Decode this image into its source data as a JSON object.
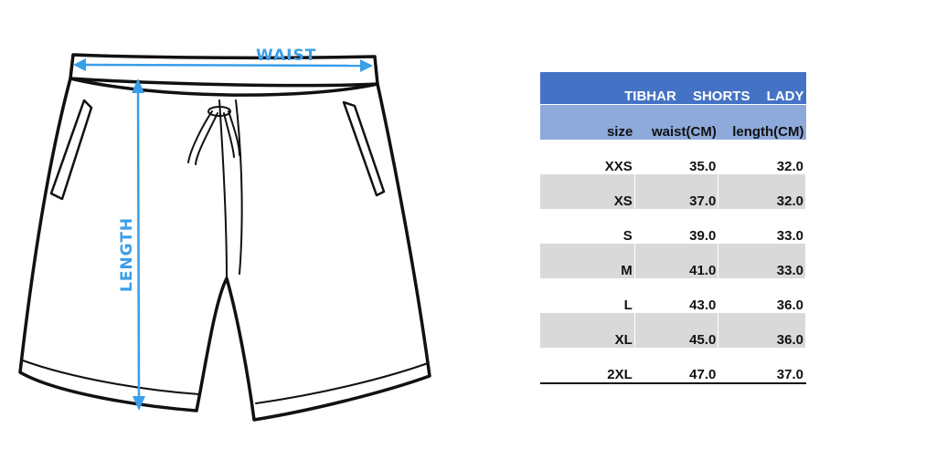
{
  "diagram": {
    "waist_label": "WAIST",
    "length_label": "LENGTH",
    "accent_color": "#3a9ee8"
  },
  "table": {
    "title": [
      "TIBHAR",
      "SHORTS",
      "LADY"
    ],
    "headers": [
      "size",
      "waist(CM)",
      "length(CM)"
    ],
    "rows": [
      {
        "size": "XXS",
        "waist": "35.0",
        "length": "32.0"
      },
      {
        "size": "XS",
        "waist": "37.0",
        "length": "32.0"
      },
      {
        "size": "S",
        "waist": "39.0",
        "length": "33.0"
      },
      {
        "size": "M",
        "waist": "41.0",
        "length": "33.0"
      },
      {
        "size": "L",
        "waist": "43.0",
        "length": "36.0"
      },
      {
        "size": "XL",
        "waist": "45.0",
        "length": "36.0"
      },
      {
        "size": "2XL",
        "waist": "47.0",
        "length": "37.0"
      }
    ],
    "header_color": "#4472c4",
    "subheader_color": "#8eaadb",
    "stripe_color": "#d9d9d9"
  }
}
